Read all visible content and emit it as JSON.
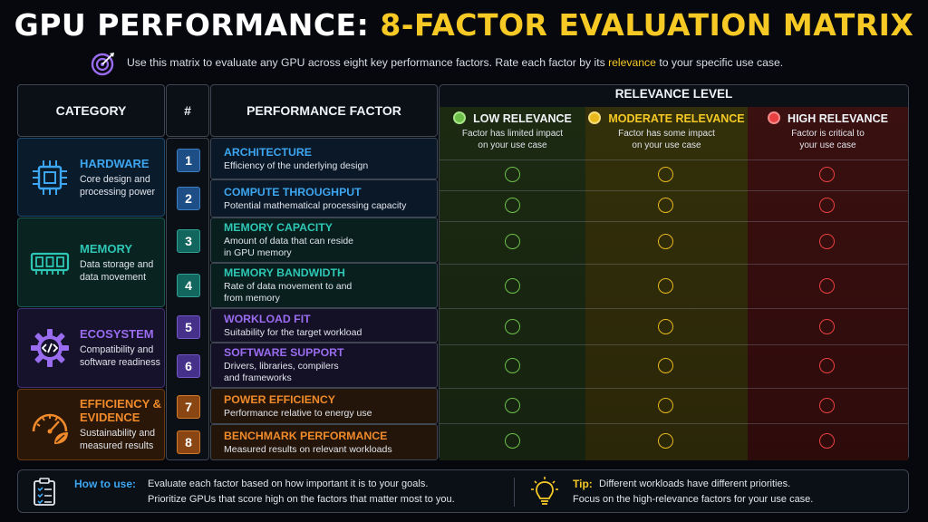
{
  "title_part1": "GPU PERFORMANCE:",
  "title_part2": "8-FACTOR EVALUATION MATRIX",
  "subtitle_pre": "Use this matrix to evaluate any GPU across eight key performance factors.  Rate each factor by its",
  "subtitle_highlight": "relevance",
  "subtitle_post": "to your specific use case.",
  "headers": {
    "category": "CATEGORY",
    "number": "#",
    "factor": "PERFORMANCE FACTOR",
    "relevance": "RELEVANCE LEVEL"
  },
  "relevance_levels": [
    {
      "label": "LOW RELEVANCE",
      "desc1": "Factor has limited impact",
      "desc2": "on your use case",
      "color": "#6cc04a"
    },
    {
      "label": "MODERATE RELEVANCE",
      "desc1": "Factor has some impact",
      "desc2": "on your use case",
      "color": "#e8b81c"
    },
    {
      "label": "HIGH RELEVANCE",
      "desc1": "Factor is critical to",
      "desc2": "your use case",
      "color": "#e84040"
    }
  ],
  "categories": [
    {
      "name1": "HARDWARE",
      "name2": "",
      "desc1": "Core design and",
      "desc2": "processing power",
      "color": "#3da6f0",
      "icon": "chip-icon"
    },
    {
      "name1": "MEMORY",
      "name2": "",
      "desc1": "Data storage and",
      "desc2": "data movement",
      "color": "#2ec7b5",
      "icon": "memory-module-icon"
    },
    {
      "name1": "ECOSYSTEM",
      "name2": "",
      "desc1": "Compatibility and",
      "desc2": "software readiness",
      "color": "#9a6cf0",
      "icon": "gear-code-icon"
    },
    {
      "name1": "EFFICIENCY &",
      "name2": "EVIDENCE",
      "desc1": "Sustainability and",
      "desc2": "measured results",
      "color": "#f08a2a",
      "icon": "gauge-leaf-icon"
    }
  ],
  "factors": [
    {
      "num": "1",
      "name": "ARCHITECTURE",
      "desc1": "Efficiency of the underlying design",
      "desc2": ""
    },
    {
      "num": "2",
      "name": "COMPUTE THROUGHPUT",
      "desc1": "Potential mathematical processing capacity",
      "desc2": ""
    },
    {
      "num": "3",
      "name": "MEMORY CAPACITY",
      "desc1": "Amount of data that can reside",
      "desc2": "in GPU memory"
    },
    {
      "num": "4",
      "name": "MEMORY BANDWIDTH",
      "desc1": "Rate of data movement to and",
      "desc2": "from memory"
    },
    {
      "num": "5",
      "name": "WORKLOAD FIT",
      "desc1": "Suitability for the target workload",
      "desc2": ""
    },
    {
      "num": "6",
      "name": "SOFTWARE SUPPORT",
      "desc1": "Drivers, libraries, compilers",
      "desc2": "and frameworks"
    },
    {
      "num": "7",
      "name": "POWER EFFICIENCY",
      "desc1": "Performance relative to energy use",
      "desc2": ""
    },
    {
      "num": "8",
      "name": "BENCHMARK PERFORMANCE",
      "desc1": "Measured results on relevant workloads",
      "desc2": ""
    }
  ],
  "how_to_use": {
    "label": "How to use:",
    "line1": "Evaluate each factor based on how important it is to your goals.",
    "line2": "Prioritize GPUs that score high on the factors that matter most to you."
  },
  "tip": {
    "label": "Tip:",
    "line1": "Different workloads have different priorities.",
    "line2": "Focus on the high-relevance factors for your use case."
  }
}
